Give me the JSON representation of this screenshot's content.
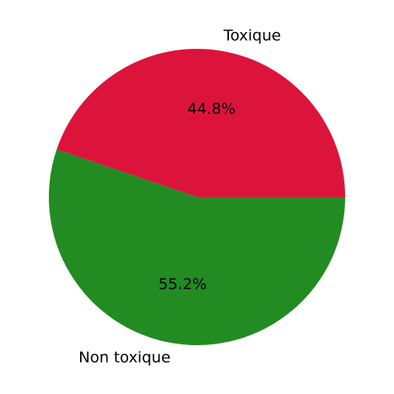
{
  "chart_data": {
    "type": "pie",
    "categories": [
      "Toxique",
      "Non toxique"
    ],
    "values": [
      44.8,
      55.2
    ],
    "value_labels": [
      "44.8%",
      "55.2%"
    ],
    "colors": [
      "#dc143c",
      "#228b22"
    ],
    "start_angle_deg": 0,
    "direction": "counterclockwise",
    "title": "",
    "legend": "none"
  }
}
